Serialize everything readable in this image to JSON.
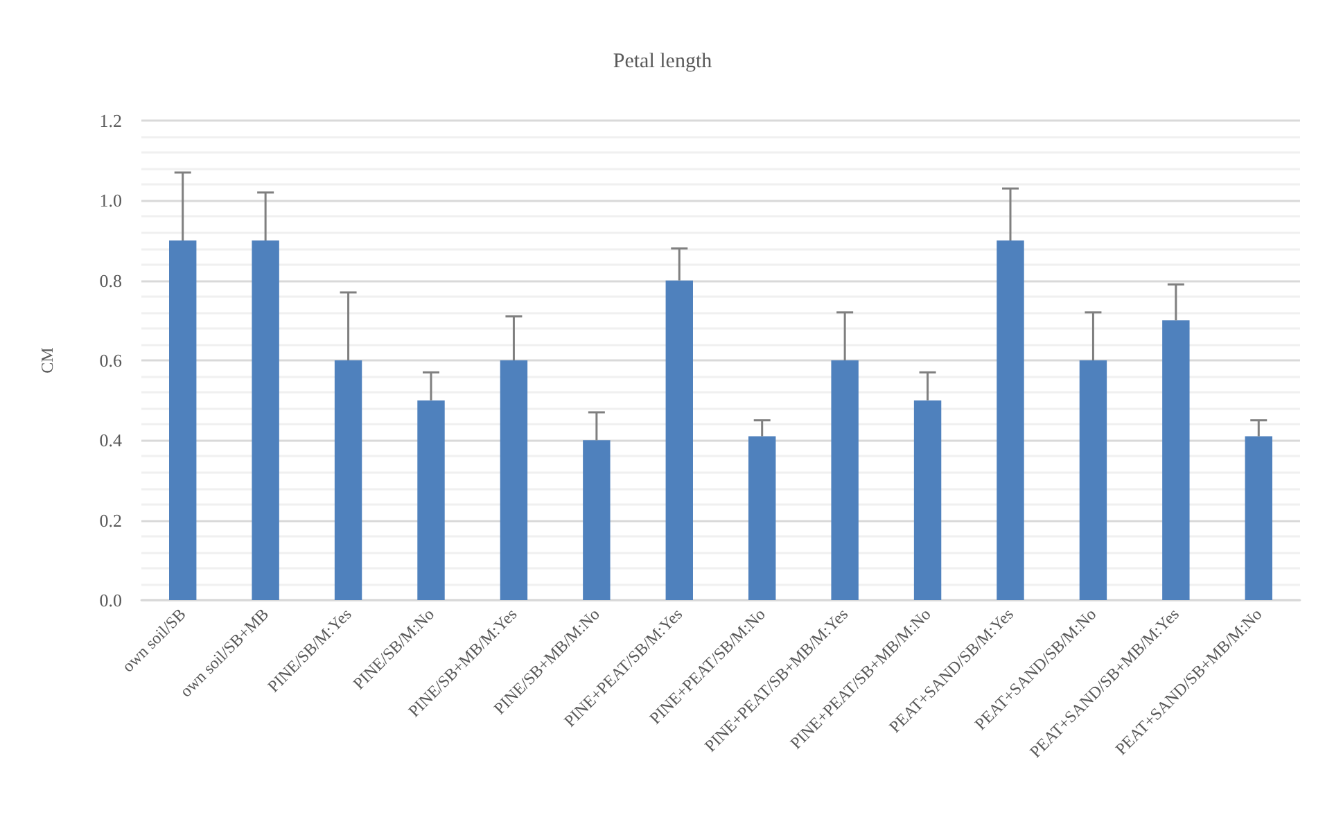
{
  "chart_data": {
    "type": "bar",
    "title": "Petal length",
    "ylabel": "CM",
    "categories": [
      "own soil/SB",
      "own soil/SB+MB",
      "PINE/SB/M:Yes",
      "PINE/SB/M:No",
      "PINE/SB+MB/M:Yes",
      "PINE/SB+MB/M:No",
      "PINE+PEAT/SB/M:Yes",
      "PINE+PEAT/SB/M:No",
      "PINE+PEAT/SB+MB/M:Yes",
      "PINE+PEAT/SB+MB/M:No",
      "PEAT+SAND/SB/M:Yes",
      "PEAT+SAND/SB/M:No",
      "PEAT+SAND/SB+MB/M:Yes",
      "PEAT+SAND/SB+MB/M:No"
    ],
    "values": [
      0.9,
      0.9,
      0.6,
      0.5,
      0.6,
      0.4,
      0.8,
      0.41,
      0.6,
      0.5,
      0.9,
      0.6,
      0.7,
      0.41
    ],
    "errors": [
      [
        0.9,
        1.07
      ],
      [
        0.9,
        1.02
      ],
      [
        0.6,
        0.77
      ],
      [
        0.5,
        0.57
      ],
      [
        0.6,
        0.71
      ],
      [
        0.4,
        0.47
      ],
      [
        0.8,
        0.88
      ],
      [
        0.41,
        0.45
      ],
      [
        0.6,
        0.72
      ],
      [
        0.5,
        0.57
      ],
      [
        0.9,
        1.03
      ],
      [
        0.6,
        0.72
      ],
      [
        0.7,
        0.79
      ],
      [
        0.41,
        0.45
      ]
    ],
    "color": "#4f81bd",
    "ylim": [
      0,
      1.2
    ],
    "yticks": [
      {
        "value": 0,
        "label": "0.0"
      },
      0.2,
      0.4,
      0.6,
      0.8,
      {
        "value": 1,
        "label": "1.0"
      },
      1.2
    ],
    "grid": true
  }
}
